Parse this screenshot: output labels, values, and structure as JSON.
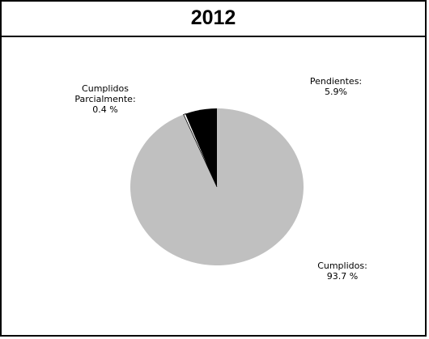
{
  "chart_data": {
    "type": "pie",
    "title": "2012",
    "slices": [
      {
        "label": "Cumplidos:",
        "value_label": "93.7 %",
        "value": 93.7,
        "color": "#c0c0c0"
      },
      {
        "label": "Cumplidos Parcialmente:",
        "label_lines": [
          "Cumplidos",
          "Parcialmente:"
        ],
        "value_label": "0.4 %",
        "value": 0.4,
        "color": "#ffffff"
      },
      {
        "label": "Pendientes:",
        "value_label": "5.9%",
        "value": 5.9,
        "color": "#000000"
      }
    ],
    "legend": "none"
  }
}
